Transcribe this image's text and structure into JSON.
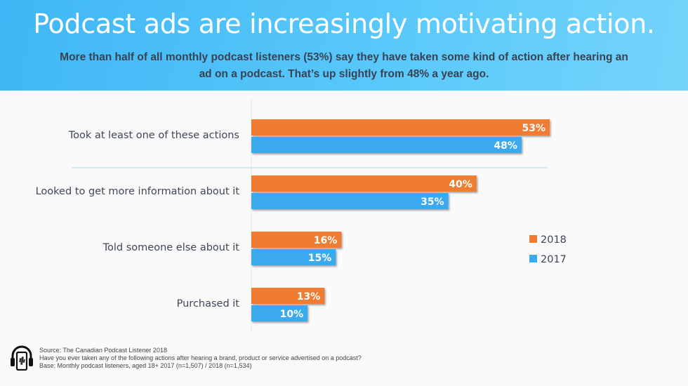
{
  "header": {
    "title": "Podcast ads are increasingly motivating action.",
    "subtitle": "More than half of all monthly podcast listeners (53%) say they have taken some kind of action after hearing an ad on a podcast. That’s up slightly from 48% a year ago."
  },
  "colors": {
    "series_2018": "#f07b33",
    "series_2017": "#3ba9ee",
    "header_bg": "#4cc0f8",
    "separator": "#b8dcf2"
  },
  "chart_data": {
    "type": "bar",
    "orientation": "horizontal",
    "title": "Podcast ads are increasingly motivating action.",
    "xlabel": "",
    "ylabel": "",
    "categories": [
      "Took at least one of these actions",
      "Looked to get more information about it",
      "Told someone else about it",
      "Purchased it"
    ],
    "series": [
      {
        "name": "2018",
        "values": [
          53,
          40,
          16,
          13
        ],
        "labels": [
          "53%",
          "40%",
          "16%",
          "13%"
        ]
      },
      {
        "name": "2017",
        "values": [
          48,
          35,
          15,
          10
        ],
        "labels": [
          "48%",
          "35%",
          "15%",
          "10%"
        ]
      }
    ],
    "xlim": [
      0,
      55
    ],
    "grid": false,
    "legend": {
      "position": "right",
      "entries": [
        "2018",
        "2017"
      ]
    },
    "annotations": [
      "separator line after first category"
    ]
  },
  "footer": {
    "icon": "podcast-headphones-phone-icon",
    "source": "Source:  The Canadian Podcast Listener 2018",
    "question": "Have you ever taken any of the following actions after hearing a brand, product or service advertised on a podcast?",
    "base": "Base: Monthly podcast listeners, aged 18+   2017 (n=1,507) / 2018 (n=1,534)"
  }
}
